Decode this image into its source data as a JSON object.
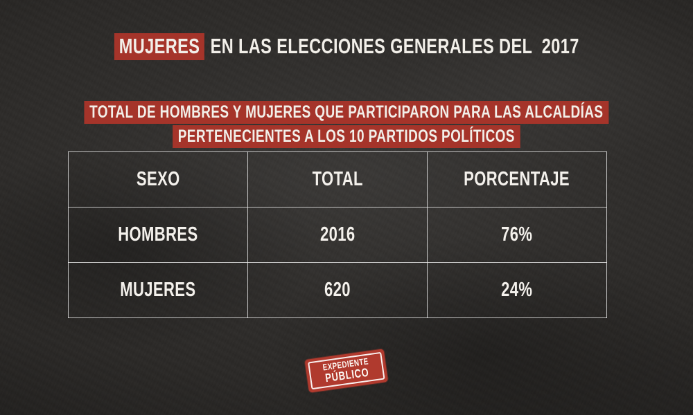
{
  "page": {
    "background_color": "#2b2927",
    "accent_red": "#a5342a",
    "stamp_red": "#b03a2e",
    "text_color": "#f2efe9",
    "table_border_color": "#f0f0f0"
  },
  "title": {
    "highlight": "MUJERES",
    "rest": " EN LAS ELECCIONES GENERALES DEL  2017"
  },
  "subtitle": {
    "line1": "TOTAL DE HOMBRES Y MUJERES QUE PARTICIPARON PARA LAS ALCALDÍAS",
    "line2": "PERTENECIENTES A LOS 10 PARTIDOS POLÍTICOS"
  },
  "table": {
    "headers": [
      "SEXO",
      "TOTAL",
      "PORCENTAJE"
    ],
    "rows": [
      {
        "cells": [
          "HOMBRES",
          "2016",
          "76%"
        ]
      },
      {
        "cells": [
          "MUJERES",
          "620",
          "24%"
        ]
      }
    ]
  },
  "stamp": {
    "line1": "EXPEDIENTE",
    "line2": "PÚBLICO"
  },
  "chart_data": {
    "type": "table",
    "title": "MUJERES EN LAS ELECCIONES GENERALES DEL 2017",
    "subtitle": "TOTAL DE HOMBRES Y MUJERES QUE PARTICIPARON PARA LAS ALCALDÍAS PERTENECIENTES A LOS 10 PARTIDOS POLÍTICOS",
    "columns": [
      "SEXO",
      "TOTAL",
      "PORCENTAJE"
    ],
    "rows": [
      [
        "HOMBRES",
        2016,
        "76%"
      ],
      [
        "MUJERES",
        620,
        "24%"
      ]
    ],
    "source_brand": "EXPEDIENTE PÚBLICO"
  }
}
